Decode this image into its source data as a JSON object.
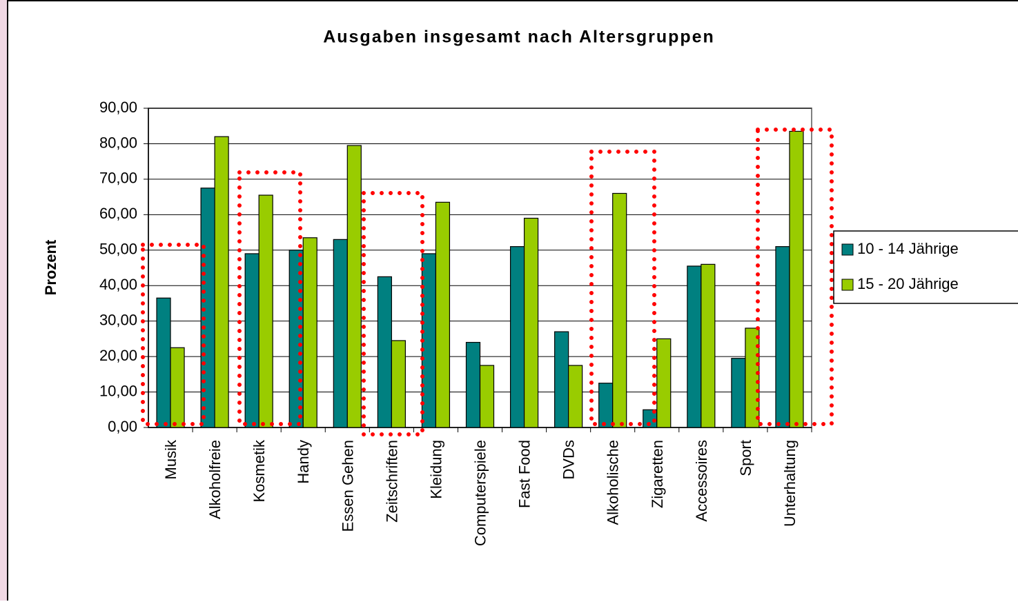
{
  "chart_data": {
    "type": "bar",
    "title": "Ausgaben insgesamt nach Altersgruppen",
    "y_label": "Prozent",
    "categories": [
      "Musik",
      "Alkoholfreie",
      "Kosmetik",
      "Handy",
      "Essen Gehen",
      "Zeitschriften",
      "Kleidung",
      "Computerspiele",
      "Fast Food",
      "DVDs",
      "Alkoholische",
      "Zigaretten",
      "Accessoires",
      "Sport",
      "Unterhaltung"
    ],
    "series": [
      {
        "name": "10 - 14 Jährige",
        "color": "#008080",
        "values": [
          36.5,
          67.5,
          49,
          50,
          53,
          42.5,
          49,
          24,
          51,
          27,
          12.5,
          5,
          45.5,
          19.5,
          51
        ]
      },
      {
        "name": "15 - 20 Jährige",
        "color": "#99cc00",
        "values": [
          22.5,
          82,
          65.5,
          53.5,
          79.5,
          24.5,
          63.5,
          17.5,
          59,
          17.5,
          66,
          25,
          46,
          28,
          83.5
        ]
      }
    ],
    "ylim": [
      0,
      90
    ],
    "yticks": [
      {
        "value": 0,
        "label": "0,00"
      },
      {
        "value": 10,
        "label": "10,00"
      },
      {
        "value": 20,
        "label": "20,00"
      },
      {
        "value": 30,
        "label": "30,00"
      },
      {
        "value": 40,
        "label": "40,00"
      },
      {
        "value": 50,
        "label": "50,00"
      },
      {
        "value": 60,
        "label": "60,00"
      },
      {
        "value": 70,
        "label": "70,00"
      },
      {
        "value": 80,
        "label": "80,00"
      },
      {
        "value": 90,
        "label": "90,00"
      }
    ],
    "grid": true,
    "legend": "right"
  }
}
